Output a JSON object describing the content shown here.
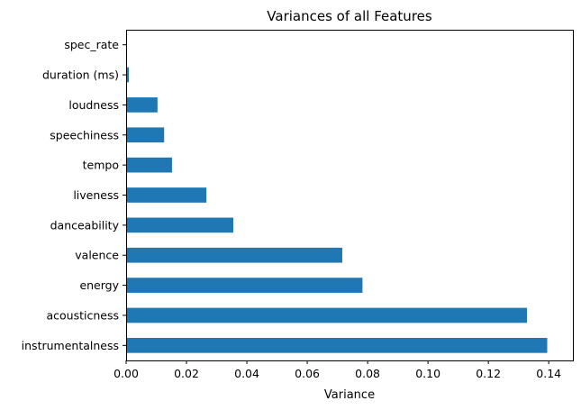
{
  "chart_data": {
    "type": "bar",
    "orientation": "horizontal",
    "title": "Variances of all Features",
    "xlabel": "Variance",
    "ylabel": "",
    "xlim": [
      0,
      0.148
    ],
    "x_ticks": [
      0.0,
      0.02,
      0.04,
      0.06,
      0.08,
      0.1,
      0.12,
      0.14
    ],
    "x_tick_labels": [
      "0.00",
      "0.02",
      "0.04",
      "0.06",
      "0.08",
      "0.10",
      "0.12",
      "0.14"
    ],
    "categories": [
      "instrumentalness",
      "acousticness",
      "energy",
      "valence",
      "danceability",
      "liveness",
      "tempo",
      "speechiness",
      "loudness",
      "duration (ms)",
      "spec_rate"
    ],
    "values": [
      0.1395,
      0.1328,
      0.0783,
      0.0716,
      0.0355,
      0.0266,
      0.0152,
      0.0126,
      0.0104,
      0.0009,
      0.0
    ],
    "bar_color": "#1f77b4",
    "grid": false,
    "legend": "none"
  }
}
